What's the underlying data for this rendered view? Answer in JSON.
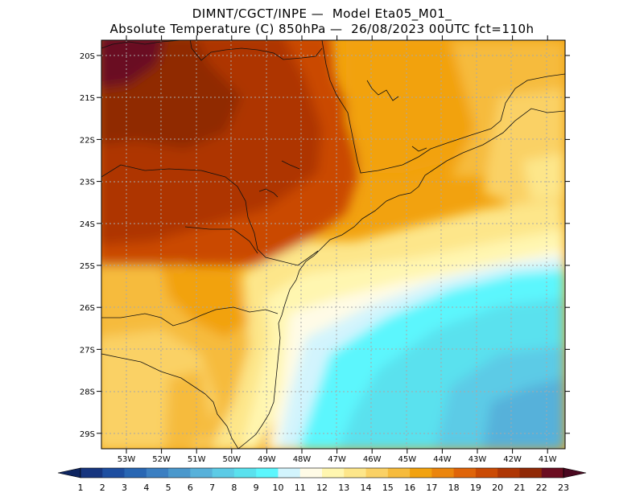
{
  "header": {
    "line1": "DIMNT/CGCT/INPE —  Model Eta05_M01_",
    "line2": "Absolute Temperature (C) 850hPa —  26/08/2023 00UTC fct=110h"
  },
  "map": {
    "lat_labels": [
      "20S",
      "21S",
      "22S",
      "23S",
      "24S",
      "25S",
      "26S",
      "27S",
      "28S",
      "29S"
    ],
    "lon_labels": [
      "53W",
      "52W",
      "51W",
      "50W",
      "49W",
      "48W",
      "47W",
      "46W",
      "45W",
      "44W",
      "43W",
      "42W",
      "41W"
    ]
  },
  "colorbar": {
    "labels": [
      "1",
      "2",
      "3",
      "4",
      "5",
      "6",
      "7",
      "8",
      "9",
      "10",
      "11",
      "12",
      "13",
      "14",
      "15",
      "16",
      "17",
      "18",
      "19",
      "20",
      "21",
      "22",
      "23"
    ],
    "colors": [
      "#16357f",
      "#1d4ea0",
      "#2866b3",
      "#3b7fc2",
      "#4a98cc",
      "#57b1da",
      "#5ccbe6",
      "#5ae1ee",
      "#5cf6fd",
      "#d2f4fd",
      "#fffbe6",
      "#fff6b0",
      "#fde68a",
      "#fad165",
      "#f6bb3c",
      "#f2a20f",
      "#eb850d",
      "#df6409",
      "#ca4a04",
      "#ae3604",
      "#902906",
      "#6b0d20"
    ],
    "low_arrow_color": "#0e2560",
    "high_arrow_color": "#4a0820"
  }
}
